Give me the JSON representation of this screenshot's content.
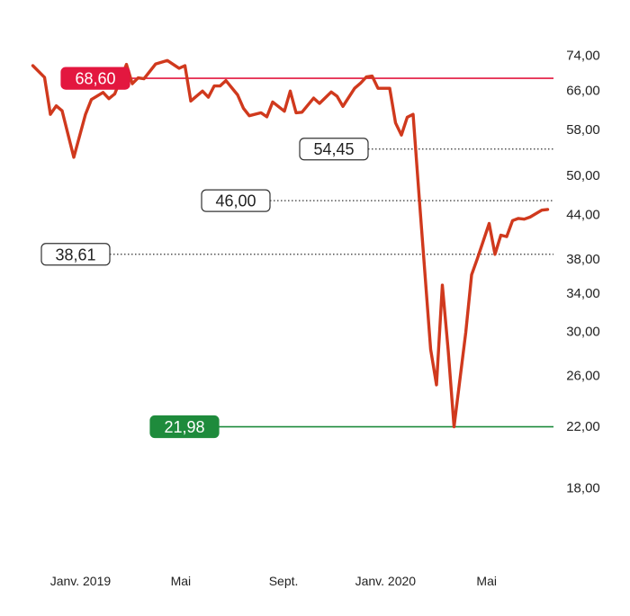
{
  "chart_data": {
    "type": "line",
    "title": "",
    "xlabel": "",
    "ylabel": "",
    "x_ticks": [
      "Janv. 2019",
      "Mai",
      "Sept.",
      "Janv. 2020",
      "Mai"
    ],
    "y_ticks": [
      "74,00",
      "66,00",
      "58,00",
      "50,00",
      "44,00",
      "38,00",
      "34,00",
      "30,00",
      "26,00",
      "22,00",
      "18,00"
    ],
    "y_scale": "log",
    "ylim": [
      16.8,
      76.5
    ],
    "xlim": [
      "2018-10-29",
      "2020-07-20"
    ],
    "grid": false,
    "series": [
      {
        "color": "#d0391d",
        "x": [
          "2018-11-05",
          "2018-11-19",
          "2018-11-26",
          "2018-12-03",
          "2018-12-10",
          "2018-12-24",
          "2019-01-07",
          "2019-01-14",
          "2019-01-28",
          "2019-02-04",
          "2019-02-11",
          "2019-02-25",
          "2019-03-04",
          "2019-03-11",
          "2019-03-18",
          "2019-04-01",
          "2019-04-15",
          "2019-04-29",
          "2019-05-06",
          "2019-05-13",
          "2019-05-27",
          "2019-06-03",
          "2019-06-10",
          "2019-06-17",
          "2019-06-24",
          "2019-07-08",
          "2019-07-15",
          "2019-07-22",
          "2019-08-05",
          "2019-08-12",
          "2019-08-19",
          "2019-09-02",
          "2019-09-09",
          "2019-09-16",
          "2019-09-23",
          "2019-10-07",
          "2019-10-14",
          "2019-10-28",
          "2019-11-04",
          "2019-11-11",
          "2019-11-25",
          "2019-12-02",
          "2019-12-09",
          "2019-12-16",
          "2019-12-23",
          "2020-01-06",
          "2020-01-13",
          "2020-01-20",
          "2020-01-27",
          "2020-02-03",
          "2020-02-10",
          "2020-02-24",
          "2020-03-02",
          "2020-03-09",
          "2020-03-16",
          "2020-03-23",
          "2020-04-06",
          "2020-04-13",
          "2020-04-20",
          "2020-05-04",
          "2020-05-11",
          "2020-05-18",
          "2020-05-25",
          "2020-06-01",
          "2020-06-08",
          "2020-06-15",
          "2020-06-22",
          "2020-07-06",
          "2020-07-13"
        ],
        "values": [
          71.5,
          68.8,
          61.0,
          62.7,
          61.7,
          53.0,
          61.0,
          64.0,
          65.5,
          64.2,
          65.2,
          71.8,
          67.4,
          68.7,
          68.5,
          71.9,
          72.7,
          70.9,
          71.5,
          63.7,
          65.8,
          64.5,
          66.9,
          66.9,
          68.1,
          65.0,
          62.2,
          60.7,
          61.3,
          60.5,
          63.5,
          61.6,
          65.8,
          61.3,
          61.4,
          64.3,
          63.2,
          65.6,
          64.7,
          62.6,
          66.4,
          67.5,
          68.9,
          69.1,
          66.4,
          66.4,
          59.3,
          57.0,
          60.4,
          61.0,
          47.0,
          28.3,
          25.2,
          34.9,
          28.2,
          21.98,
          29.9,
          36.1,
          38.1,
          42.7,
          38.6,
          41.1,
          40.9,
          43.1,
          43.4,
          43.3,
          43.6,
          44.6,
          44.7
        ]
      }
    ],
    "reference_lines": [
      {
        "label": "68,60",
        "value": 68.6,
        "color": "#e3173f",
        "style": "solid",
        "badge": "filled"
      },
      {
        "label": "54,45",
        "value": 54.45,
        "color": "#333333",
        "style": "dotted",
        "badge": "outline"
      },
      {
        "label": "46,00",
        "value": 46.0,
        "color": "#333333",
        "style": "dotted",
        "badge": "outline"
      },
      {
        "label": "38,61",
        "value": 38.61,
        "color": "#333333",
        "style": "dotted",
        "badge": "outline"
      },
      {
        "label": "21,98",
        "value": 21.98,
        "color": "#1e8b3c",
        "style": "solid",
        "badge": "filled"
      }
    ]
  }
}
